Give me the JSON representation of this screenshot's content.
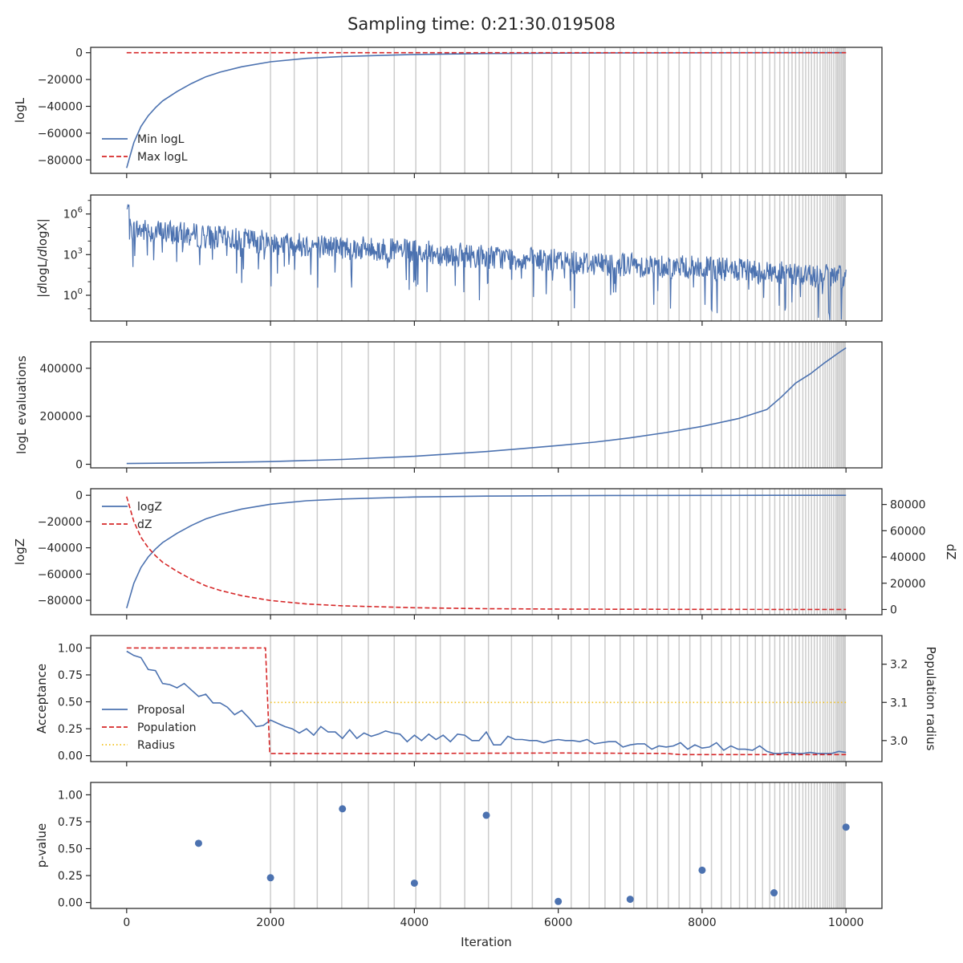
{
  "title": "Sampling time: 0:21:30.019508",
  "xlabel": "Iteration",
  "x_ticks": [
    0,
    2000,
    4000,
    6000,
    8000,
    10000
  ],
  "xlim": [
    -500,
    10500
  ],
  "colors": {
    "blue": "#4c72b0",
    "red": "#d62728",
    "yellow": "#f2c11d",
    "grid": "#cccccc",
    "axis": "#262626"
  },
  "chart_data": [
    {
      "type": "line",
      "ylabel": "logL",
      "ylim": [
        -90000,
        4000
      ],
      "y_ticks": [
        0,
        -20000,
        -40000,
        -60000,
        -80000
      ],
      "y_tick_labels": [
        "0",
        "−20000",
        "−40000",
        "−60000",
        "−80000"
      ],
      "legend": "lower-left",
      "series": [
        {
          "name": "Min logL",
          "style": "solid",
          "color": "#4c72b0",
          "x": [
            0,
            100,
            200,
            300,
            400,
            500,
            700,
            900,
            1100,
            1300,
            1600,
            2000,
            2500,
            3000,
            4000,
            5000,
            6000,
            7000,
            8000,
            9000,
            10000
          ],
          "y": [
            -86000,
            -67000,
            -55000,
            -47000,
            -41000,
            -36000,
            -29000,
            -23000,
            -18000,
            -14500,
            -10500,
            -6800,
            -4200,
            -2800,
            -1300,
            -600,
            -300,
            -150,
            -80,
            -40,
            -20
          ]
        },
        {
          "name": "Max logL",
          "style": "dashed",
          "color": "#d62728",
          "x": [
            0,
            10000
          ],
          "y": [
            0,
            0
          ]
        }
      ]
    },
    {
      "type": "line",
      "ylabel": "|dlogL/dlogX|",
      "scale": "log",
      "ylim_log10": [
        -1.9,
        7.4
      ],
      "y_ticks_log10": [
        0,
        3,
        6
      ],
      "series": [
        {
          "name": "",
          "style": "noisy",
          "color": "#4c72b0",
          "trend_x": [
            0,
            2000,
            4000,
            6000,
            8000,
            10000
          ],
          "trend_log10": [
            4.9,
            3.9,
            3.2,
            2.5,
            2.0,
            1.3
          ],
          "peak_log10": 6.7
        }
      ]
    },
    {
      "type": "line",
      "ylabel": "logL evaluations",
      "ylim": [
        -15000,
        510000
      ],
      "y_ticks": [
        0,
        200000,
        400000
      ],
      "series": [
        {
          "name": "",
          "style": "solid",
          "color": "#4c72b0",
          "x": [
            0,
            1000,
            2000,
            3000,
            4000,
            5000,
            6000,
            6500,
            7000,
            7500,
            8000,
            8500,
            8900,
            9100,
            9300,
            9500,
            9700,
            9900,
            10000
          ],
          "y": [
            3000,
            6000,
            11000,
            20000,
            33000,
            53000,
            78000,
            92000,
            110000,
            132000,
            158000,
            190000,
            228000,
            280000,
            338000,
            376000,
            422000,
            465000,
            485000
          ]
        }
      ]
    },
    {
      "type": "line",
      "ylabel": "logZ",
      "ylim": [
        -91000,
        5000
      ],
      "y_ticks": [
        0,
        -20000,
        -40000,
        -60000,
        -80000
      ],
      "y_tick_labels": [
        "0",
        "−20000",
        "−40000",
        "−60000",
        "−80000"
      ],
      "ylabel_right": "dZ",
      "ylim_right": [
        -4000,
        92000
      ],
      "y_ticks_right": [
        0,
        20000,
        40000,
        60000,
        80000
      ],
      "legend": "upper-left",
      "series": [
        {
          "name": "logZ",
          "style": "solid",
          "color": "#4c72b0",
          "axis": "left",
          "x": [
            0,
            100,
            200,
            300,
            400,
            500,
            700,
            900,
            1100,
            1300,
            1600,
            2000,
            2500,
            3000,
            4000,
            5000,
            6000,
            7000,
            8000,
            9000,
            10000
          ],
          "y": [
            -86000,
            -67000,
            -55000,
            -47000,
            -41000,
            -36000,
            -29000,
            -23000,
            -18000,
            -14500,
            -10500,
            -6800,
            -4200,
            -2800,
            -1300,
            -600,
            -300,
            -150,
            -80,
            -40,
            -20
          ]
        },
        {
          "name": "dZ",
          "style": "dashed",
          "color": "#d62728",
          "axis": "right",
          "x": [
            0,
            100,
            200,
            300,
            400,
            500,
            700,
            900,
            1100,
            1300,
            1600,
            2000,
            2500,
            3000,
            4000,
            5000,
            6000,
            7000,
            8000,
            9000,
            10000
          ],
          "y": [
            86000,
            67000,
            55000,
            47000,
            41000,
            36000,
            29000,
            23000,
            18000,
            14500,
            10500,
            6800,
            4200,
            2800,
            1300,
            600,
            300,
            150,
            80,
            40,
            20
          ]
        }
      ]
    },
    {
      "type": "line",
      "ylabel": "Acceptance",
      "ylim": [
        -0.055,
        1.115
      ],
      "y_ticks": [
        0,
        0.25,
        0.5,
        0.75,
        1
      ],
      "y_tick_labels": [
        "0.00",
        "0.25",
        "0.50",
        "0.75",
        "1.00"
      ],
      "ylabel_right": "Population radius",
      "ylim_right": [
        2.945,
        3.275
      ],
      "y_ticks_right": [
        3.0,
        3.1,
        3.2
      ],
      "legend": "lower-left",
      "series": [
        {
          "name": "Proposal",
          "style": "solid",
          "color": "#4c72b0",
          "axis": "left",
          "x": [
            0,
            100,
            200,
            300,
            400,
            500,
            600,
            700,
            800,
            900,
            1000,
            1100,
            1200,
            1300,
            1400,
            1500,
            1600,
            1700,
            1800,
            1900,
            2000,
            2100,
            2200,
            2300,
            2400,
            2500,
            2600,
            2700,
            2800,
            2900,
            3000,
            3100,
            3200,
            3300,
            3400,
            3500,
            3600,
            3700,
            3800,
            3900,
            4000,
            4100,
            4200,
            4300,
            4400,
            4500,
            4600,
            4700,
            4800,
            4900,
            5000,
            5100,
            5200,
            5300,
            5400,
            5500,
            5600,
            5700,
            5800,
            5900,
            6000,
            6100,
            6200,
            6300,
            6400,
            6500,
            6600,
            6700,
            6800,
            6900,
            7000,
            7100,
            7200,
            7300,
            7400,
            7500,
            7600,
            7700,
            7800,
            7900,
            8000,
            8100,
            8200,
            8300,
            8400,
            8500,
            8600,
            8700,
            8800,
            8900,
            9000,
            9100,
            9200,
            9300,
            9400,
            9500,
            9600,
            9700,
            9800,
            9900,
            10000
          ],
          "y": [
            0.97,
            0.93,
            0.91,
            0.8,
            0.79,
            0.67,
            0.66,
            0.63,
            0.67,
            0.61,
            0.55,
            0.57,
            0.49,
            0.49,
            0.45,
            0.38,
            0.42,
            0.35,
            0.27,
            0.28,
            0.33,
            0.3,
            0.27,
            0.25,
            0.21,
            0.25,
            0.19,
            0.27,
            0.22,
            0.22,
            0.16,
            0.24,
            0.16,
            0.21,
            0.18,
            0.2,
            0.23,
            0.21,
            0.2,
            0.13,
            0.19,
            0.14,
            0.2,
            0.15,
            0.19,
            0.13,
            0.2,
            0.19,
            0.14,
            0.14,
            0.22,
            0.1,
            0.1,
            0.18,
            0.15,
            0.15,
            0.14,
            0.14,
            0.12,
            0.14,
            0.15,
            0.14,
            0.14,
            0.13,
            0.15,
            0.11,
            0.12,
            0.13,
            0.13,
            0.08,
            0.1,
            0.11,
            0.11,
            0.06,
            0.09,
            0.08,
            0.09,
            0.12,
            0.06,
            0.1,
            0.07,
            0.08,
            0.12,
            0.05,
            0.09,
            0.06,
            0.06,
            0.05,
            0.09,
            0.04,
            0.02,
            0.02,
            0.03,
            0.02,
            0.02,
            0.03,
            0.02,
            0.02,
            0.02,
            0.04,
            0.03
          ]
        },
        {
          "name": "Population",
          "style": "dashed",
          "color": "#d62728",
          "axis": "left",
          "x": [
            0,
            1930,
            1990,
            4000,
            6000,
            7500,
            7700,
            10000
          ],
          "y": [
            1.0,
            1.0,
            0.02,
            0.02,
            0.025,
            0.02,
            0.01,
            0.01
          ]
        },
        {
          "name": "Radius",
          "style": "dotted",
          "color": "#f2c11d",
          "axis": "right",
          "x": [
            2000,
            10000
          ],
          "y": [
            3.1,
            3.1
          ]
        }
      ]
    },
    {
      "type": "scatter",
      "ylabel": "p-value",
      "ylim": [
        -0.055,
        1.115
      ],
      "y_ticks": [
        0,
        0.25,
        0.5,
        0.75,
        1
      ],
      "y_tick_labels": [
        "0.00",
        "0.25",
        "0.50",
        "0.75",
        "1.00"
      ],
      "series": [
        {
          "name": "",
          "color": "#4c72b0",
          "x": [
            1000,
            2000,
            3000,
            4000,
            5000,
            6000,
            7000,
            8000,
            9000,
            10000
          ],
          "y": [
            0.55,
            0.23,
            0.87,
            0.18,
            0.81,
            0.01,
            0.03,
            0.3,
            0.09,
            0.7
          ]
        }
      ]
    }
  ],
  "vlines": [
    2000,
    2330,
    2650,
    2990,
    3360,
    3720,
    4020,
    4360,
    4700,
    5030,
    5350,
    5640,
    5910,
    6180,
    6430,
    6650,
    6860,
    7050,
    7230,
    7380,
    7530,
    7680,
    7830,
    7980,
    8130,
    8270,
    8400,
    8520,
    8630,
    8740,
    8840,
    8940,
    9010,
    9080,
    9140,
    9200,
    9250,
    9300,
    9350,
    9400,
    9440,
    9480,
    9520,
    9560,
    9600,
    9640,
    9680,
    9710,
    9740,
    9770,
    9800,
    9830,
    9860,
    9880,
    9900,
    9920,
    9940,
    9960,
    9975,
    9990
  ]
}
